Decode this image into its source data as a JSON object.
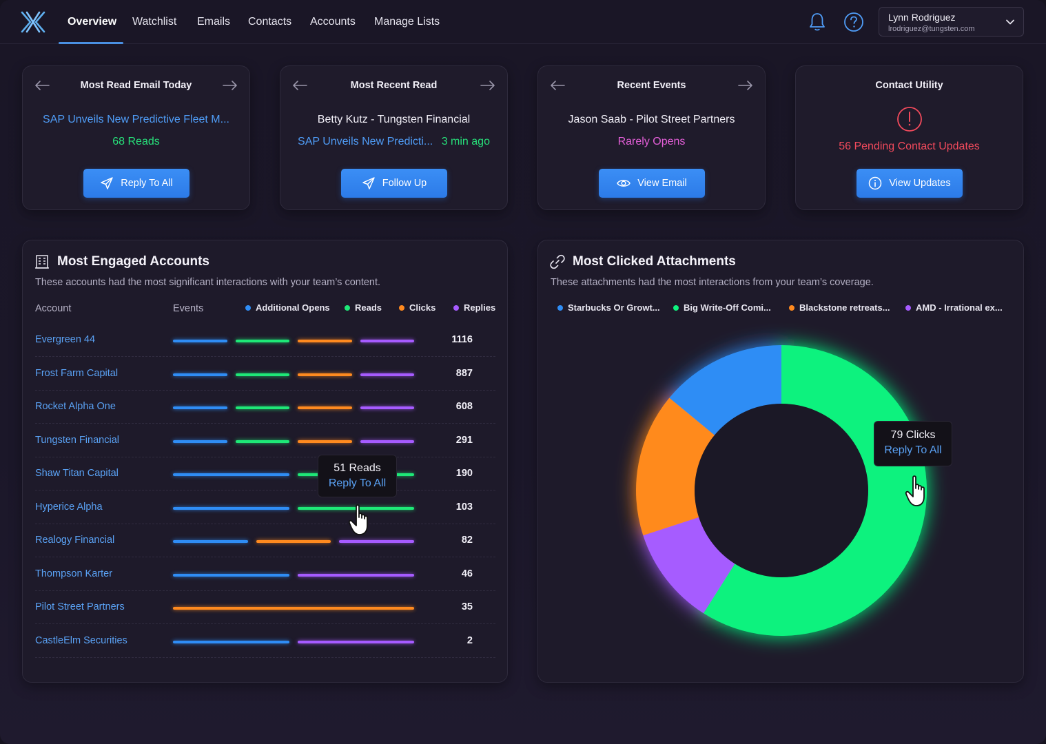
{
  "nav": {
    "tabs": [
      {
        "label": "Overview",
        "active": true
      },
      {
        "label": "Watchlist"
      },
      {
        "label": "Emails"
      },
      {
        "label": "Contacts"
      },
      {
        "label": "Accounts"
      },
      {
        "label": "Manage Lists"
      }
    ],
    "icons": [
      "bell-icon",
      "help-icon",
      "chevron-down-icon"
    ],
    "user": {
      "name": "Lynn Rodriguez",
      "email": "lrodriguez@tungsten.com"
    }
  },
  "cards": [
    {
      "title": "Most Read Email Today",
      "line1": "SAP Unveils New Predictive Fleet M...",
      "line2": "68 Reads",
      "button": "Reply To All",
      "button_icon": "send-icon"
    },
    {
      "title": "Most Recent Read",
      "line1": "Betty Kutz - Tungsten Financial",
      "line2a": "SAP Unveils New Predicti...",
      "line2b": "3 min ago",
      "button": "Follow Up",
      "button_icon": "send-icon"
    },
    {
      "title": "Recent Events",
      "line1": "Jason Saab - Pilot Street Partners",
      "line2": "Rarely Opens",
      "button": "View Email",
      "button_icon": "eye-icon"
    },
    {
      "title": "Contact Utility",
      "line1": "56 Pending Contact Updates",
      "button": "View Updates",
      "button_icon": "info-icon"
    }
  ],
  "engaged": {
    "title": "Most Engaged Accounts",
    "subtitle": "These accounts had the most significant interactions with your team’s content.",
    "col_account": "Account",
    "col_events": "Events",
    "legend": [
      "Additional Opens",
      "Reads",
      "Clicks",
      "Replies"
    ],
    "colors": {
      "opens": "#2f8df5",
      "reads": "#1ee877",
      "clicks": "#ff8a1f",
      "replies": "#a65bff"
    },
    "rows": [
      {
        "name": "Evergreen 44",
        "total": "1116",
        "segments": [
          "opens",
          "reads",
          "clicks",
          "replies"
        ]
      },
      {
        "name": "Frost Farm Capital",
        "total": "887",
        "segments": [
          "opens",
          "reads",
          "clicks",
          "replies"
        ]
      },
      {
        "name": "Rocket Alpha One",
        "total": "608",
        "segments": [
          "opens",
          "reads",
          "clicks",
          "replies"
        ]
      },
      {
        "name": "Tungsten Financial",
        "total": "291",
        "segments": [
          "opens",
          "reads",
          "clicks",
          "replies"
        ]
      },
      {
        "name": "Shaw Titan Capital",
        "total": "190",
        "segments": [
          "opens",
          "reads"
        ]
      },
      {
        "name": "Hyperice Alpha",
        "total": "103",
        "segments": [
          "opens",
          "reads"
        ]
      },
      {
        "name": "Realogy Financial",
        "total": "82",
        "segments": [
          "opens",
          "clicks",
          "replies"
        ]
      },
      {
        "name": "Thompson Karter",
        "total": "46",
        "segments": [
          "opens",
          "replies"
        ]
      },
      {
        "name": "Pilot Street Partners",
        "total": "35",
        "segments": [
          "clicks"
        ]
      },
      {
        "name": "CastleElm Securities",
        "total": "2",
        "segments": [
          "opens",
          "replies"
        ]
      }
    ],
    "tooltip": {
      "line1": "51 Reads",
      "line2": "Reply To All"
    }
  },
  "attachments": {
    "title": "Most Clicked Attachments",
    "subtitle": "These attachments had the most interactions from your team’s coverage.",
    "legend": [
      "Starbucks Or Growt...",
      "Big Write-Off Comi...",
      "Blackstone retreats...",
      "AMD - Irrational ex..."
    ],
    "colors": [
      "#2f8df5",
      "#0ef27e",
      "#ff8a1f",
      "#a65bff"
    ],
    "tooltip": {
      "line1": "79 Clicks",
      "line2": "Reply To All"
    }
  },
  "chart_data": {
    "type": "pie",
    "categories": [
      "Starbucks Or Growt...",
      "Big Write-Off Comi...",
      "Blackstone retreats...",
      "AMD - Irrational ex..."
    ],
    "values": [
      14,
      59,
      16,
      11
    ],
    "annotations": [
      "79 Clicks"
    ]
  }
}
